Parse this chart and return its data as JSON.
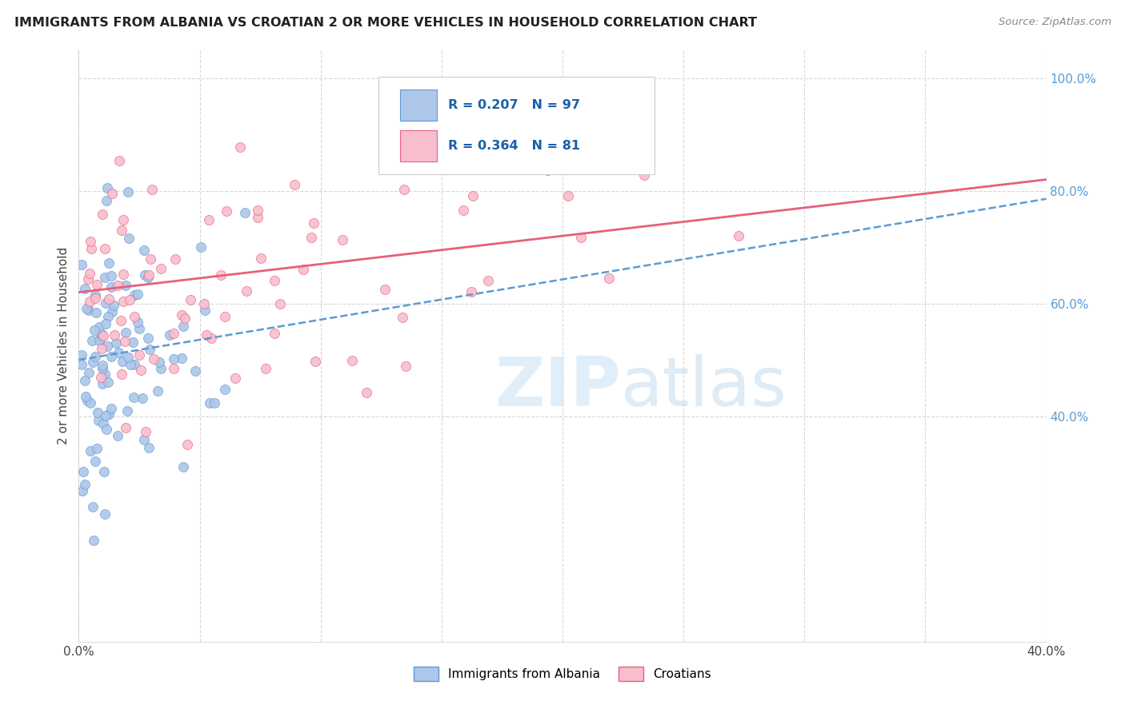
{
  "title": "IMMIGRANTS FROM ALBANIA VS CROATIAN 2 OR MORE VEHICLES IN HOUSEHOLD CORRELATION CHART",
  "source": "Source: ZipAtlas.com",
  "ylabel": "2 or more Vehicles in Household",
  "xlim": [
    0.0,
    0.4
  ],
  "ylim": [
    0.0,
    1.05
  ],
  "x_tick_positions": [
    0.0,
    0.05,
    0.1,
    0.15,
    0.2,
    0.25,
    0.3,
    0.35,
    0.4
  ],
  "x_tick_labels": [
    "0.0%",
    "",
    "",
    "",
    "",
    "",
    "",
    "",
    "40.0%"
  ],
  "y_ticks_right": [
    0.4,
    0.6,
    0.8,
    1.0
  ],
  "y_tick_labels_right": [
    "40.0%",
    "60.0%",
    "80.0%",
    "100.0%"
  ],
  "albania_fill_color": "#aec6e8",
  "croatia_fill_color": "#f9bece",
  "albania_line_color": "#5b9bd5",
  "croatia_line_color": "#e8607a",
  "albania_R": 0.207,
  "albania_N": 97,
  "croatian_R": 0.364,
  "croatian_N": 81,
  "legend_label_albania": "Immigrants from Albania",
  "legend_label_croatian": "Croatians",
  "watermark_zip": "ZIP",
  "watermark_atlas": "atlas",
  "background_color": "#ffffff",
  "grid_color": "#d8d8d8",
  "title_color": "#222222",
  "source_color": "#888888",
  "ylabel_color": "#444444",
  "tick_color": "#444444",
  "right_tick_color": "#5b9bd5",
  "legend_text_color": "#1a5fa8"
}
